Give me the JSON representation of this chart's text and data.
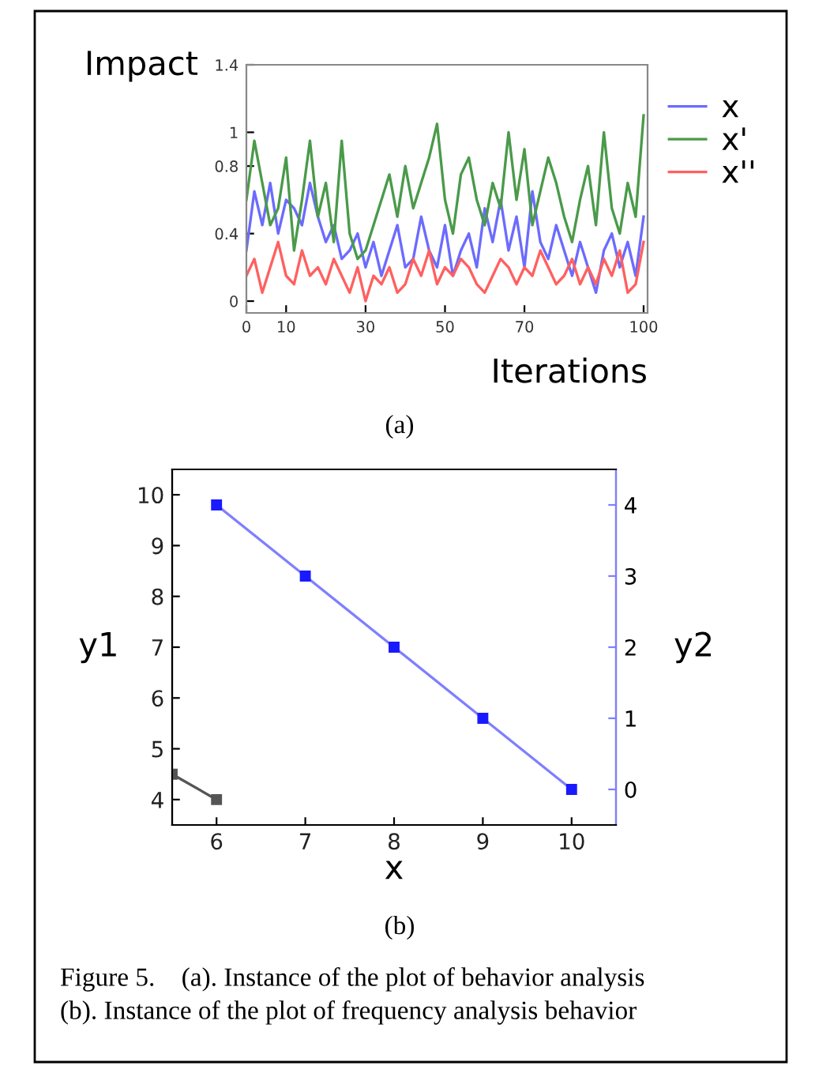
{
  "chart_data": [
    {
      "type": "line",
      "xlabel": "Iterations",
      "ylabel": "Impact",
      "xlim": [
        0,
        101
      ],
      "xticks": [
        0,
        10,
        30,
        50,
        70,
        100
      ],
      "ylim": [
        -0.07,
        1.4
      ],
      "yticks": [
        0,
        0.4,
        0.8,
        1,
        1.4
      ],
      "legend": "top right",
      "grid": false,
      "annotations": [
        "(a)"
      ],
      "x": [
        0,
        2,
        4,
        6,
        8,
        10,
        12,
        14,
        16,
        18,
        20,
        22,
        24,
        26,
        28,
        30,
        32,
        34,
        36,
        38,
        40,
        42,
        44,
        46,
        48,
        50,
        52,
        54,
        56,
        58,
        60,
        62,
        64,
        66,
        68,
        70,
        72,
        74,
        76,
        78,
        80,
        82,
        84,
        86,
        88,
        90,
        92,
        94,
        96,
        98,
        100
      ],
      "series": [
        {
          "name": "x",
          "color": "#6b6bff",
          "values": [
            0.3,
            0.65,
            0.45,
            0.7,
            0.4,
            0.6,
            0.55,
            0.45,
            0.7,
            0.5,
            0.35,
            0.45,
            0.25,
            0.3,
            0.4,
            0.2,
            0.35,
            0.15,
            0.3,
            0.45,
            0.2,
            0.25,
            0.5,
            0.3,
            0.2,
            0.45,
            0.15,
            0.3,
            0.4,
            0.2,
            0.55,
            0.35,
            0.6,
            0.3,
            0.5,
            0.2,
            0.65,
            0.35,
            0.25,
            0.45,
            0.3,
            0.15,
            0.35,
            0.2,
            0.05,
            0.3,
            0.4,
            0.2,
            0.35,
            0.15,
            0.5
          ]
        },
        {
          "name": "x'",
          "color": "#4a9a4a",
          "values": [
            0.6,
            0.95,
            0.7,
            0.45,
            0.55,
            0.85,
            0.3,
            0.6,
            0.95,
            0.5,
            0.7,
            0.35,
            0.95,
            0.4,
            0.25,
            0.3,
            0.45,
            0.6,
            0.75,
            0.5,
            0.8,
            0.55,
            0.7,
            0.85,
            1.05,
            0.6,
            0.4,
            0.75,
            0.85,
            0.6,
            0.45,
            0.7,
            0.55,
            1.0,
            0.6,
            0.9,
            0.45,
            0.65,
            0.85,
            0.7,
            0.5,
            0.35,
            0.6,
            0.8,
            0.45,
            1.0,
            0.55,
            0.4,
            0.7,
            0.5,
            1.1
          ]
        },
        {
          "name": "x''",
          "color": "#ff6060",
          "values": [
            0.15,
            0.25,
            0.05,
            0.2,
            0.35,
            0.15,
            0.1,
            0.3,
            0.15,
            0.2,
            0.1,
            0.25,
            0.15,
            0.05,
            0.2,
            0.0,
            0.15,
            0.1,
            0.2,
            0.05,
            0.1,
            0.25,
            0.15,
            0.3,
            0.1,
            0.2,
            0.15,
            0.25,
            0.2,
            0.1,
            0.05,
            0.15,
            0.25,
            0.2,
            0.1,
            0.2,
            0.15,
            0.3,
            0.2,
            0.1,
            0.15,
            0.25,
            0.1,
            0.2,
            0.1,
            0.25,
            0.15,
            0.3,
            0.05,
            0.1,
            0.35
          ]
        }
      ]
    },
    {
      "type": "line",
      "xlabel": "x",
      "ylabel": "y1",
      "y2label": "y2",
      "xlim": [
        5.5,
        10.5
      ],
      "xticks": [
        6,
        7,
        8,
        9,
        10
      ],
      "ylim": [
        3.5,
        10.5
      ],
      "yticks": [
        4,
        5,
        6,
        7,
        8,
        9,
        10
      ],
      "y2lim": [
        -0.5,
        4.5
      ],
      "y2ticks": [
        0,
        1,
        2,
        3,
        4
      ],
      "marker": "square",
      "grid": false,
      "annotations": [
        "(b)",
        "Figure 5.    (a). Instance of the plot of behavior analysis",
        "(b). Instance of the plot of frequency analysis behavior"
      ],
      "series": [
        {
          "color": "#555555",
          "x": [
            5.5,
            6
          ],
          "values": [
            4.5,
            4
          ]
        },
        {
          "color": "#7f7fff",
          "axis": "y2",
          "x": [
            6,
            7,
            8,
            9,
            10
          ],
          "values": [
            4,
            3,
            2,
            1,
            0
          ]
        }
      ]
    }
  ]
}
